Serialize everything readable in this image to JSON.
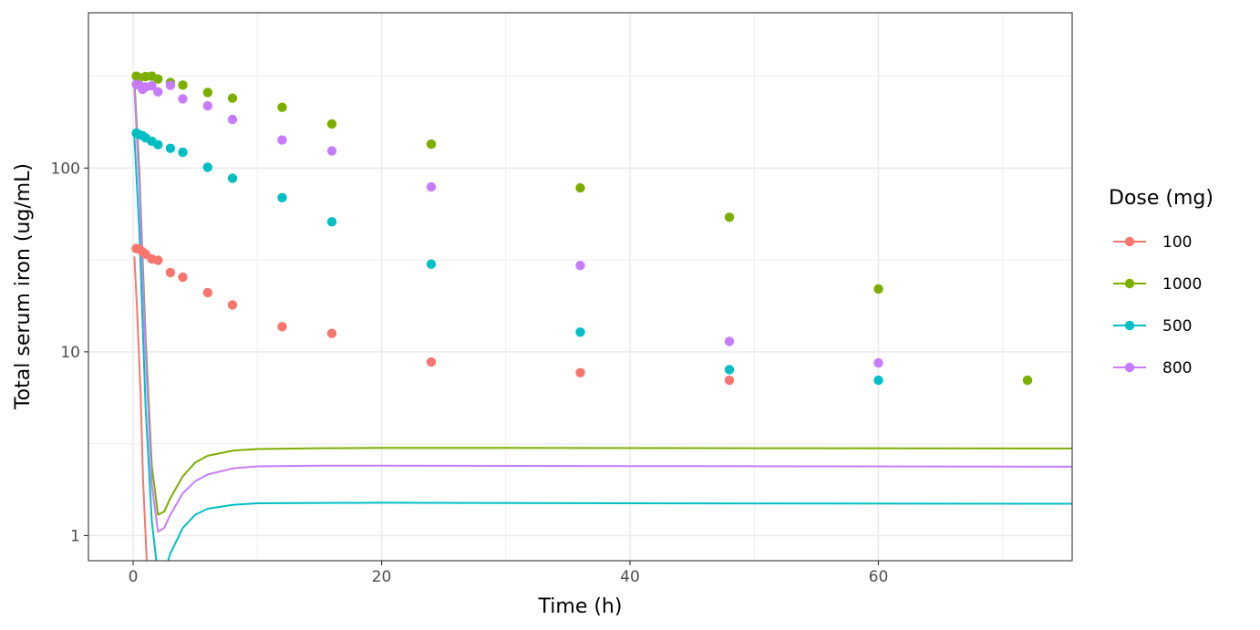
{
  "chart_data": {
    "type": "scatter",
    "title": "",
    "xlabel": "Time (h)",
    "ylabel": "Total serum iron (ug/mL)",
    "x_scale": "linear",
    "y_scale": "log10",
    "xlim": [
      -3.6,
      75.6
    ],
    "ylim": [
      0.73,
      700
    ],
    "x_ticks": [
      0,
      20,
      40,
      60
    ],
    "x_tick_labels": [
      "0",
      "20",
      "40",
      "60"
    ],
    "y_ticks": [
      1,
      10,
      100
    ],
    "y_tick_labels": [
      "1",
      "10",
      "100"
    ],
    "grid": true,
    "legend": {
      "title": "Dose (mg)",
      "position": "right"
    },
    "series": [
      {
        "name": "100",
        "color": "#F8766D",
        "points": [
          [
            0.25,
            36.5
          ],
          [
            0.5,
            36.2
          ],
          [
            0.75,
            35
          ],
          [
            1,
            34
          ],
          [
            1.5,
            32
          ],
          [
            2,
            31.5
          ],
          [
            3,
            27
          ],
          [
            4,
            25.5
          ],
          [
            6,
            21
          ],
          [
            8,
            18
          ],
          [
            12,
            13.7
          ],
          [
            16,
            12.6
          ],
          [
            24,
            8.8
          ],
          [
            36,
            7.7
          ],
          [
            48,
            7.0
          ]
        ],
        "curve": [
          [
            0.1,
            33
          ],
          [
            0.3,
            18
          ],
          [
            0.6,
            6
          ],
          [
            0.8,
            2
          ],
          [
            1.0,
            1.0
          ],
          [
            1.2,
            0.5
          ]
        ]
      },
      {
        "name": "1000",
        "color": "#7CAE00",
        "points": [
          [
            0.25,
            316
          ],
          [
            0.5,
            310
          ],
          [
            1,
            315
          ],
          [
            1.5,
            316
          ],
          [
            2,
            305
          ],
          [
            3,
            292
          ],
          [
            4,
            283
          ],
          [
            6,
            258
          ],
          [
            8,
            240
          ],
          [
            12,
            214
          ],
          [
            16,
            174
          ],
          [
            24,
            135
          ],
          [
            36,
            78
          ],
          [
            48,
            54
          ],
          [
            60,
            22
          ],
          [
            72,
            7.0
          ]
        ],
        "curve": [
          [
            0.1,
            300
          ],
          [
            0.5,
            95
          ],
          [
            1.0,
            12
          ],
          [
            1.5,
            2.4
          ],
          [
            2.0,
            1.3
          ],
          [
            2.5,
            1.35
          ],
          [
            3,
            1.6
          ],
          [
            4,
            2.1
          ],
          [
            5,
            2.5
          ],
          [
            6,
            2.72
          ],
          [
            8,
            2.9
          ],
          [
            10,
            2.96
          ],
          [
            15,
            2.99
          ],
          [
            20,
            3.0
          ],
          [
            30,
            3.0
          ],
          [
            50,
            2.99
          ],
          [
            75.6,
            2.98
          ]
        ]
      },
      {
        "name": "500",
        "color": "#00BFC4",
        "points": [
          [
            0.25,
            155
          ],
          [
            0.5,
            152
          ],
          [
            0.75,
            150
          ],
          [
            1,
            146
          ],
          [
            1.5,
            140
          ],
          [
            2,
            134
          ],
          [
            3,
            128
          ],
          [
            4,
            122
          ],
          [
            6,
            101
          ],
          [
            8,
            88
          ],
          [
            12,
            69
          ],
          [
            16,
            51
          ],
          [
            24,
            30
          ],
          [
            36,
            12.8
          ],
          [
            48,
            8.0
          ],
          [
            60,
            7.0
          ]
        ],
        "curve": [
          [
            0.1,
            148
          ],
          [
            0.5,
            45
          ],
          [
            1.0,
            5
          ],
          [
            1.5,
            1.2
          ],
          [
            1.9,
            0.7
          ],
          [
            2.4,
            0.6
          ],
          [
            3,
            0.8
          ],
          [
            4,
            1.1
          ],
          [
            5,
            1.3
          ],
          [
            6,
            1.4
          ],
          [
            8,
            1.47
          ],
          [
            10,
            1.5
          ],
          [
            20,
            1.51
          ],
          [
            40,
            1.5
          ],
          [
            75.6,
            1.49
          ]
        ]
      },
      {
        "name": "800",
        "color": "#C77CFF",
        "points": [
          [
            0.25,
            285
          ],
          [
            0.5,
            282
          ],
          [
            0.75,
            268
          ],
          [
            1,
            276
          ],
          [
            1.5,
            280
          ],
          [
            2,
            260
          ],
          [
            3,
            282
          ],
          [
            4,
            238
          ],
          [
            6,
            218
          ],
          [
            8,
            184
          ],
          [
            12,
            142
          ],
          [
            16,
            124
          ],
          [
            24,
            79
          ],
          [
            36,
            29.5
          ],
          [
            48,
            11.4
          ],
          [
            60,
            8.7
          ]
        ],
        "curve": [
          [
            0.1,
            270
          ],
          [
            0.5,
            80
          ],
          [
            1.0,
            10
          ],
          [
            1.5,
            1.9
          ],
          [
            2.0,
            1.05
          ],
          [
            2.5,
            1.1
          ],
          [
            3,
            1.3
          ],
          [
            4,
            1.7
          ],
          [
            5,
            1.98
          ],
          [
            6,
            2.15
          ],
          [
            8,
            2.32
          ],
          [
            10,
            2.38
          ],
          [
            15,
            2.4
          ],
          [
            20,
            2.4
          ],
          [
            40,
            2.39
          ],
          [
            75.6,
            2.37
          ]
        ]
      }
    ]
  }
}
